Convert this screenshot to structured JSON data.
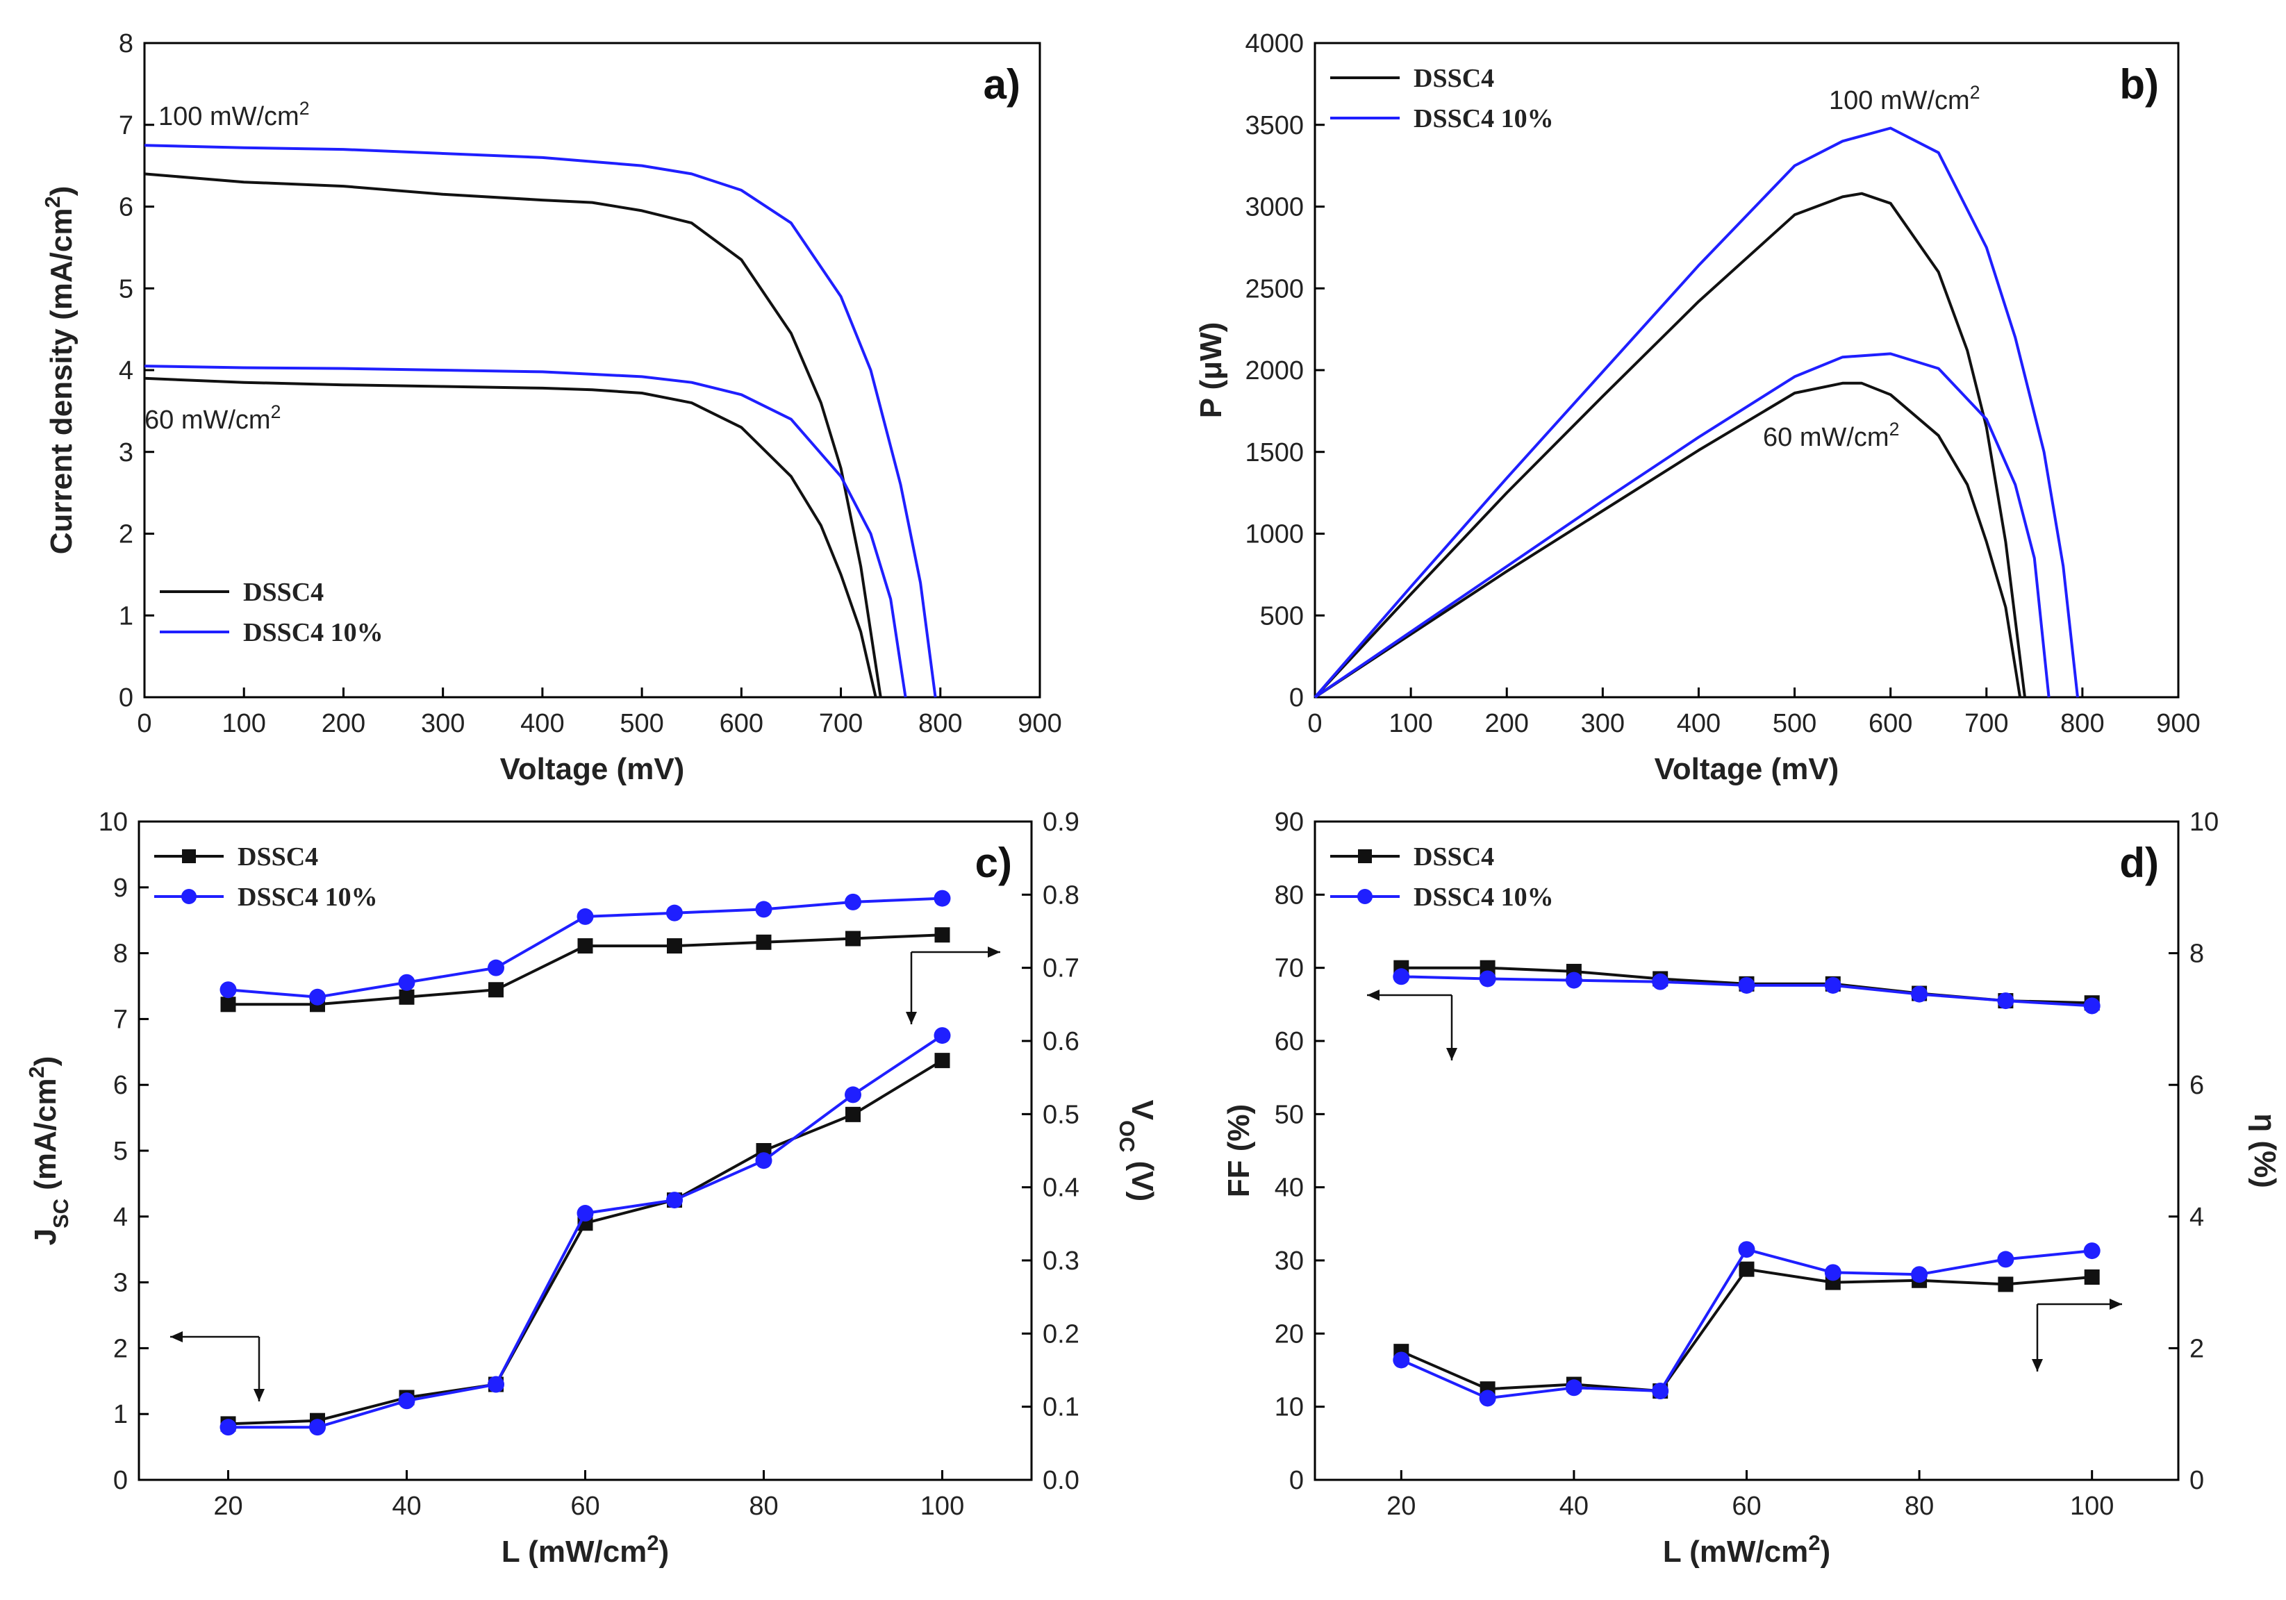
{
  "colors": {
    "black": "#111111",
    "blue": "#1f1fff"
  },
  "chart_data": [
    {
      "id": "a",
      "type": "line",
      "panel_label": "a)",
      "xlabel": "Voltage (mV)",
      "ylabel": "Current density (mA/cm2)",
      "xlim": [
        0,
        900
      ],
      "ylim": [
        0,
        8
      ],
      "xticks": [
        0,
        100,
        200,
        300,
        400,
        500,
        600,
        700,
        800,
        900
      ],
      "yticks": [
        0,
        1,
        2,
        3,
        4,
        5,
        6,
        7,
        8
      ],
      "legend": [
        "DSSC4",
        "DSSC4 10%"
      ],
      "annotations": [
        "100 mW/cm2",
        "60 mW/cm2"
      ],
      "series": [
        {
          "name": "DSSC4",
          "label": "100 mW/cm2",
          "color": "black",
          "x": [
            0,
            100,
            200,
            300,
            400,
            450,
            500,
            550,
            600,
            650,
            680,
            700,
            720,
            740
          ],
          "y": [
            6.4,
            6.3,
            6.25,
            6.15,
            6.08,
            6.05,
            5.95,
            5.8,
            5.35,
            4.45,
            3.6,
            2.8,
            1.6,
            0
          ]
        },
        {
          "name": "DSSC4 10%",
          "label": "100 mW/cm2",
          "color": "blue",
          "x": [
            0,
            100,
            200,
            300,
            400,
            450,
            500,
            550,
            600,
            650,
            700,
            730,
            760,
            780,
            795
          ],
          "y": [
            6.75,
            6.72,
            6.7,
            6.65,
            6.6,
            6.55,
            6.5,
            6.4,
            6.2,
            5.8,
            4.9,
            4.0,
            2.6,
            1.4,
            0
          ]
        },
        {
          "name": "DSSC4",
          "label": "60 mW/cm2",
          "color": "black",
          "x": [
            0,
            100,
            200,
            300,
            400,
            450,
            500,
            550,
            600,
            650,
            680,
            700,
            720,
            735
          ],
          "y": [
            3.9,
            3.85,
            3.82,
            3.8,
            3.78,
            3.76,
            3.72,
            3.6,
            3.3,
            2.7,
            2.1,
            1.5,
            0.8,
            0
          ]
        },
        {
          "name": "DSSC4 10%",
          "label": "60 mW/cm2",
          "color": "blue",
          "x": [
            0,
            100,
            200,
            300,
            400,
            450,
            500,
            550,
            600,
            650,
            700,
            730,
            750,
            765
          ],
          "y": [
            4.05,
            4.03,
            4.02,
            4.0,
            3.98,
            3.95,
            3.92,
            3.85,
            3.7,
            3.4,
            2.7,
            2.0,
            1.2,
            0
          ]
        }
      ]
    },
    {
      "id": "b",
      "type": "line",
      "panel_label": "b)",
      "xlabel": "Voltage (mV)",
      "ylabel": "P (μW)",
      "xlim": [
        0,
        900
      ],
      "ylim": [
        0,
        4000
      ],
      "xticks": [
        0,
        100,
        200,
        300,
        400,
        500,
        600,
        700,
        800,
        900
      ],
      "yticks": [
        0,
        500,
        1000,
        1500,
        2000,
        2500,
        3000,
        3500,
        4000
      ],
      "legend": [
        "DSSC4",
        "DSSC4 10%"
      ],
      "annotations": [
        "100 mW/cm2",
        "60 mW/cm2"
      ],
      "series": [
        {
          "name": "DSSC4",
          "label": "100 mW/cm2",
          "color": "black",
          "x": [
            0,
            100,
            200,
            300,
            400,
            500,
            550,
            570,
            600,
            650,
            680,
            700,
            720,
            740
          ],
          "y": [
            0,
            630,
            1250,
            1840,
            2420,
            2950,
            3060,
            3080,
            3020,
            2600,
            2120,
            1650,
            950,
            0
          ]
        },
        {
          "name": "DSSC4 10%",
          "label": "100 mW/cm2",
          "color": "blue",
          "x": [
            0,
            100,
            200,
            300,
            400,
            500,
            550,
            600,
            650,
            700,
            730,
            760,
            780,
            795
          ],
          "y": [
            0,
            675,
            1340,
            1990,
            2640,
            3250,
            3400,
            3480,
            3330,
            2750,
            2200,
            1500,
            800,
            0
          ]
        },
        {
          "name": "DSSC4",
          "label": "60 mW/cm2",
          "color": "black",
          "x": [
            0,
            100,
            200,
            300,
            400,
            500,
            550,
            570,
            600,
            650,
            680,
            700,
            720,
            735
          ],
          "y": [
            0,
            385,
            770,
            1140,
            1510,
            1860,
            1920,
            1920,
            1850,
            1600,
            1300,
            950,
            550,
            0
          ]
        },
        {
          "name": "DSSC4 10%",
          "label": "60 mW/cm2",
          "color": "blue",
          "x": [
            0,
            100,
            200,
            300,
            400,
            500,
            550,
            600,
            650,
            700,
            730,
            750,
            765
          ],
          "y": [
            0,
            400,
            800,
            1200,
            1590,
            1960,
            2080,
            2100,
            2010,
            1700,
            1300,
            850,
            0
          ]
        }
      ]
    },
    {
      "id": "c",
      "type": "line",
      "panel_label": "c)",
      "xlabel": "L (mW/cm2)",
      "ylabel": "JSC (mA/cm2)",
      "y2label": "VOC (V)",
      "xlim": [
        10,
        110
      ],
      "ylim": [
        0,
        10
      ],
      "y2lim": [
        0,
        0.9
      ],
      "xticks": [
        20,
        40,
        60,
        80,
        100
      ],
      "yticks": [
        0,
        1,
        2,
        3,
        4,
        5,
        6,
        7,
        8,
        9,
        10
      ],
      "y2ticks": [
        "0.0",
        "0.1",
        "0.2",
        "0.3",
        "0.4",
        "0.5",
        "0.6",
        "0.7",
        "0.8",
        "0.9"
      ],
      "legend": [
        "DSSC4",
        "DSSC4 10%"
      ],
      "categories": [
        20,
        30,
        40,
        50,
        60,
        70,
        80,
        90,
        100
      ],
      "series": [
        {
          "name": "DSSC4",
          "axis": "left",
          "color": "black",
          "marker": "square",
          "values": [
            0.85,
            0.9,
            1.25,
            1.45,
            3.9,
            4.25,
            5.0,
            5.55,
            6.37
          ]
        },
        {
          "name": "DSSC4 10%",
          "axis": "left",
          "color": "blue",
          "marker": "circle",
          "values": [
            0.8,
            0.8,
            1.2,
            1.45,
            4.05,
            4.25,
            4.85,
            5.85,
            6.75
          ]
        },
        {
          "name": "DSSC4",
          "axis": "right",
          "color": "black",
          "marker": "square",
          "values": [
            0.65,
            0.65,
            0.66,
            0.67,
            0.73,
            0.73,
            0.735,
            0.74,
            0.745
          ]
        },
        {
          "name": "DSSC4 10%",
          "axis": "right",
          "color": "blue",
          "marker": "circle",
          "values": [
            0.67,
            0.66,
            0.68,
            0.7,
            0.77,
            0.775,
            0.78,
            0.79,
            0.795
          ]
        }
      ]
    },
    {
      "id": "d",
      "type": "line",
      "panel_label": "d)",
      "xlabel": "L (mW/cm2)",
      "ylabel": "FF (%)",
      "y2label": "η (%)",
      "xlim": [
        10,
        110
      ],
      "ylim": [
        0,
        90
      ],
      "y2lim": [
        0,
        10
      ],
      "xticks": [
        20,
        40,
        60,
        80,
        100
      ],
      "yticks": [
        0,
        10,
        20,
        30,
        40,
        50,
        60,
        70,
        80,
        90
      ],
      "y2ticks": [
        0,
        2,
        4,
        6,
        8,
        10
      ],
      "legend": [
        "DSSC4",
        "DSSC4 10%"
      ],
      "categories": [
        20,
        30,
        40,
        50,
        60,
        70,
        80,
        90,
        100
      ],
      "series": [
        {
          "name": "DSSC4",
          "axis": "left",
          "color": "black",
          "marker": "square",
          "values": [
            70,
            70,
            69.5,
            68.5,
            67.8,
            67.8,
            66.5,
            65.5,
            65.2
          ]
        },
        {
          "name": "DSSC4 10%",
          "axis": "left",
          "color": "blue",
          "marker": "circle",
          "values": [
            68.8,
            68.5,
            68.3,
            68.1,
            67.6,
            67.6,
            66.4,
            65.5,
            64.8
          ]
        },
        {
          "name": "DSSC4",
          "axis": "right",
          "color": "black",
          "marker": "square",
          "values": [
            1.95,
            1.38,
            1.45,
            1.35,
            3.2,
            3.0,
            3.03,
            2.97,
            3.08
          ]
        },
        {
          "name": "DSSC4 10%",
          "axis": "right",
          "color": "blue",
          "marker": "circle",
          "values": [
            1.82,
            1.24,
            1.4,
            1.35,
            3.5,
            3.15,
            3.12,
            3.35,
            3.48
          ]
        }
      ]
    }
  ]
}
